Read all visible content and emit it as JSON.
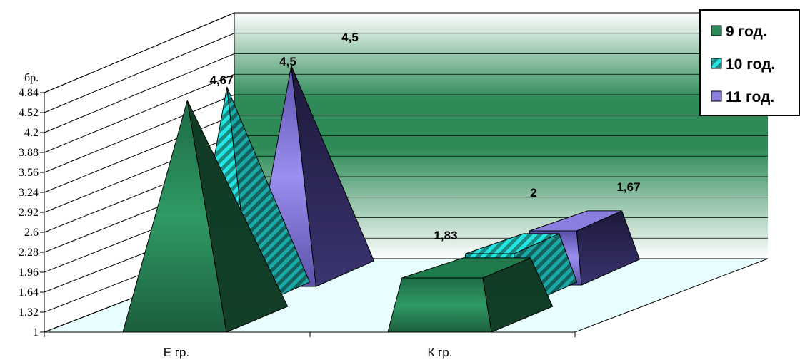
{
  "chart_data": {
    "type": "bar",
    "shape": "3d-pyramid",
    "categories": [
      "Е гр.",
      "К гр."
    ],
    "series": [
      {
        "name": "9 год.",
        "values": [
          4.67,
          1.83
        ],
        "labels": [
          "4,67",
          "1,83"
        ]
      },
      {
        "name": "10 год.",
        "values": [
          4.5,
          2
        ],
        "labels": [
          "4,5",
          "2"
        ]
      },
      {
        "name": "11 год.",
        "values": [
          4.5,
          1.67
        ],
        "labels": [
          "4,5",
          "1,67"
        ]
      }
    ],
    "ylabel": "бр.",
    "yticks": [
      "1",
      "1.32",
      "1.64",
      "1.96",
      "2.28",
      "2.6",
      "2.92",
      "3.24",
      "3.56",
      "3.88",
      "4.2",
      "4.52",
      "4.84"
    ],
    "ylim": [
      1,
      4.84
    ],
    "grid": true,
    "legend_position": "top-right",
    "colors": {
      "series_9": "#2a8a5a",
      "series_10": "#22e0e0",
      "series_11": "#8a7fe0",
      "floor": "#e8fdfd",
      "wall": "#2e8b57"
    }
  }
}
